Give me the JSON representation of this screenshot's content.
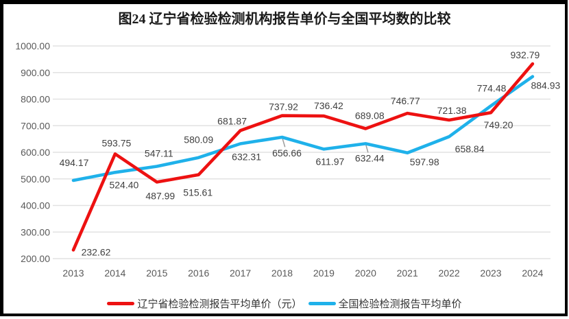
{
  "title": "图24 辽宁省检验检测机构报告单价与全国平均数的比较",
  "colors": {
    "liaoning_red": "#ed1111",
    "national_blue": "#1fb1ea",
    "gridline": "#e2e2e2",
    "axis_text": "#595959",
    "data_label_text": "#3f3f3f",
    "title_text": "#1a1a1a",
    "frame_border": "#000000",
    "leader_line": "#9b9b9b"
  },
  "legend": {
    "position": "bottom",
    "items": [
      {
        "label": "辽宁省检验检测报告平均单价（元）",
        "color_key": "liaoning_red",
        "marker": "line"
      },
      {
        "label": "全国检验检测报告平均单价",
        "color_key": "national_blue",
        "marker": "line"
      }
    ]
  },
  "chart_data": {
    "type": "line",
    "categories": [
      "2013",
      "2014",
      "2015",
      "2016",
      "2017",
      "2018",
      "2019",
      "2020",
      "2021",
      "2022",
      "2023",
      "2024"
    ],
    "series": [
      {
        "name": "辽宁省检验检测报告平均单价（元）",
        "color_key": "liaoning_red",
        "values": [
          232.62,
          593.75,
          487.99,
          515.61,
          681.87,
          737.92,
          736.42,
          689.08,
          746.77,
          721.38,
          749.2,
          932.79
        ],
        "label_offsets": [
          [
            33,
            3
          ],
          [
            2,
            -16
          ],
          [
            5,
            20
          ],
          [
            -1,
            26
          ],
          [
            -12,
            -14
          ],
          [
            2,
            -13
          ],
          [
            7,
            -15
          ],
          [
            6,
            -19
          ],
          [
            -3,
            -18
          ],
          [
            4,
            -14
          ],
          [
            11,
            18
          ],
          [
            -11,
            -13
          ]
        ],
        "leader_indices": []
      },
      {
        "name": "全国检验检测报告平均单价",
        "color_key": "national_blue",
        "values": [
          494.17,
          524.4,
          547.11,
          580.09,
          632.31,
          656.66,
          611.97,
          632.44,
          597.98,
          658.84,
          774.48,
          884.93
        ],
        "label_offsets": [
          [
            1,
            -26
          ],
          [
            13,
            18
          ],
          [
            3,
            -19
          ],
          [
            0,
            -26
          ],
          [
            9,
            19
          ],
          [
            7,
            23
          ],
          [
            9,
            18
          ],
          [
            6,
            21
          ],
          [
            25,
            13
          ],
          [
            30,
            18
          ],
          [
            1,
            -26
          ],
          [
            19,
            13
          ]
        ],
        "leader_indices": [
          5,
          7
        ]
      }
    ],
    "ylim": [
      200,
      1000
    ],
    "ytick_step": 100,
    "ytick_decimals": 2,
    "grid": true,
    "legend_position": "bottom"
  }
}
